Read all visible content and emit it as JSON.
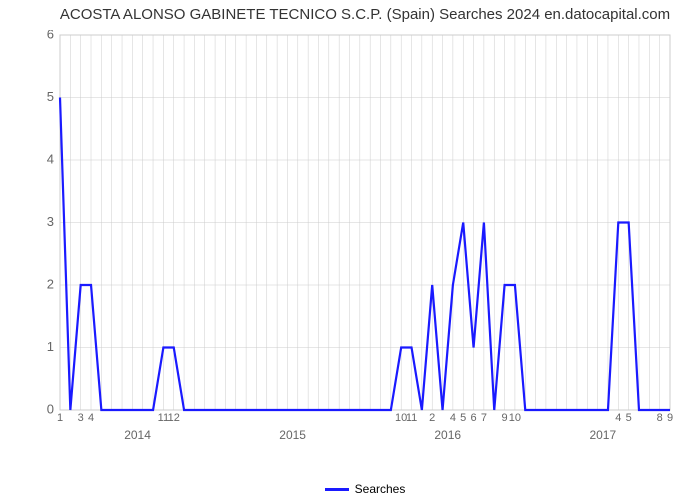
{
  "chart": {
    "type": "line",
    "title": "ACOSTA ALONSO GABINETE TECNICO S.C.P. (Spain) Searches 2024 en.datocapital.com",
    "title_fontsize": 15,
    "title_color": "#333333",
    "background_color": "#ffffff",
    "line_color": "#1a1aff",
    "line_width": 2.2,
    "grid_color": "#cccccc",
    "grid_width": 0.5,
    "axis_color": "#666666",
    "ylabel_fontsize": 13,
    "xlabel_fontsize": 11,
    "ylim": [
      0,
      6
    ],
    "yticks": [
      0,
      1,
      2,
      3,
      4,
      5,
      6
    ],
    "x_years": [
      "2014",
      "2015",
      "2016",
      "2017"
    ],
    "x_tick_labels": [
      "1",
      "",
      "3",
      "4",
      "",
      "",
      "",
      "",
      "",
      "",
      "11",
      "12",
      "",
      "",
      "",
      "",
      "",
      "",
      "",
      "",
      "",
      "",
      "",
      "",
      "",
      "",
      "",
      "",
      "",
      "",
      "",
      "",
      "",
      "10",
      "11",
      "",
      "2",
      "",
      "4",
      "5",
      "6",
      "7",
      "",
      "9",
      "10",
      "",
      "",
      "",
      "",
      "",
      "",
      "",
      "",
      "",
      "4",
      "5",
      "",
      "",
      "8",
      "9"
    ],
    "values": [
      5,
      0,
      2,
      2,
      0,
      0,
      0,
      0,
      0,
      0,
      1,
      1,
      0,
      0,
      0,
      0,
      0,
      0,
      0,
      0,
      0,
      0,
      0,
      0,
      0,
      0,
      0,
      0,
      0,
      0,
      0,
      0,
      0,
      1,
      1,
      0,
      2,
      0,
      2,
      3,
      1,
      3,
      0,
      2,
      2,
      0,
      0,
      0,
      0,
      0,
      0,
      0,
      0,
      0,
      3,
      3,
      0,
      0,
      0,
      0
    ],
    "legend_label": "Searches",
    "legend_fontsize": 12
  }
}
